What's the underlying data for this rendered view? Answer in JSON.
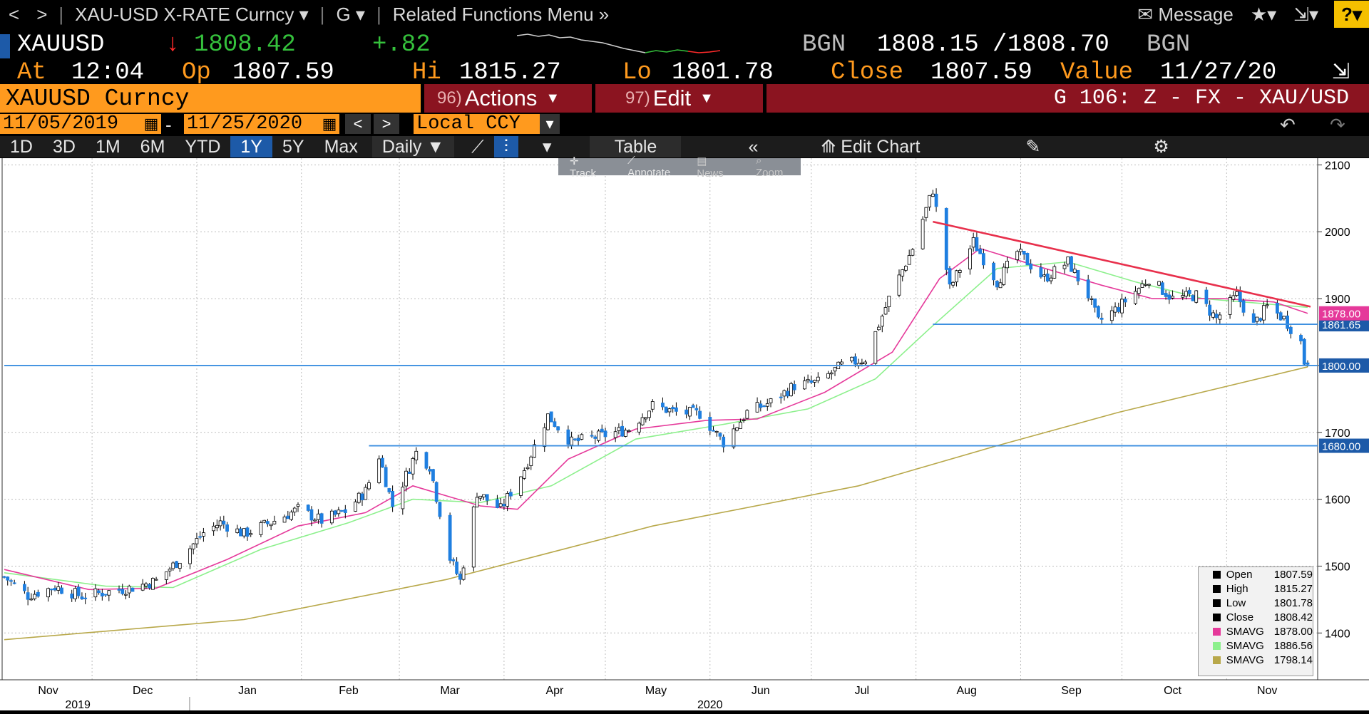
{
  "nav": {
    "back": "<",
    "forward": ">",
    "ticker_menu": "XAU-USD X-RATE Curncy",
    "g_menu": "G",
    "related": "Related Functions Menu",
    "message": "Message",
    "help": "?"
  },
  "quote": {
    "symbol": "XAUUSD",
    "last": "1808.42",
    "change": "+.82",
    "bgn1": "BGN",
    "bid": "1808.15",
    "ask": "1808.70",
    "bgn2": "BGN",
    "at_label": "At",
    "time": "12:04",
    "op_label": "Op",
    "open": "1807.59",
    "hi_label": "Hi",
    "high": "1815.27",
    "lo_label": "Lo",
    "low": "1801.78",
    "close_label": "Close",
    "close": "1807.59",
    "value_label": "Value",
    "value_date": "11/27/20"
  },
  "secbar": {
    "security": "XAUUSD Curncy",
    "actions_num": "96)",
    "actions": "Actions",
    "edit_num": "97)",
    "edit": "Edit",
    "gnum": "G 106: Z - FX - XAU/USD"
  },
  "datebar": {
    "start": "11/05/2019",
    "dash": "-",
    "end": "11/25/2020",
    "ccy": "Local CCY"
  },
  "periods": [
    "1D",
    "3D",
    "1M",
    "6M",
    "YTD",
    "1Y",
    "5Y",
    "Max"
  ],
  "selected_period": "1Y",
  "freq": "Daily",
  "table_label": "Table",
  "edit_chart": "Edit Chart",
  "tools": [
    "Track",
    "Annotate",
    "News",
    "Zoom"
  ],
  "colors": {
    "up": "#ffffff",
    "down": "#1f7fe0",
    "sma_pink": "#e5399a",
    "sma_green": "#8cf08c",
    "sma_olive": "#b8a84a",
    "trend": "#e8304c",
    "hline": "#3c8fe0"
  },
  "chart_data": {
    "type": "candlestick",
    "title": "",
    "xlabel": "",
    "ylabel": "",
    "ylim": [
      1330,
      2110
    ],
    "yticks": [
      1400,
      1500,
      1600,
      1700,
      1800,
      1900,
      2000,
      2100
    ],
    "month_labels": [
      "Nov",
      "Dec",
      "Jan",
      "Feb",
      "Mar",
      "Apr",
      "May",
      "Jun",
      "Jul",
      "Aug",
      "Sep",
      "Oct",
      "Nov"
    ],
    "year_labels": [
      "2019",
      "2020"
    ],
    "x_range": [
      "2019-11-05",
      "2020-11-25"
    ],
    "price_path": [
      [
        "2019-11-05",
        1484
      ],
      [
        "2019-11-12",
        1456
      ],
      [
        "2019-11-20",
        1469
      ],
      [
        "2019-11-28",
        1455
      ],
      [
        "2019-12-06",
        1462
      ],
      [
        "2019-12-13",
        1468
      ],
      [
        "2019-12-20",
        1478
      ],
      [
        "2019-12-27",
        1510
      ],
      [
        "2020-01-03",
        1550
      ],
      [
        "2020-01-08",
        1565
      ],
      [
        "2020-01-15",
        1548
      ],
      [
        "2020-01-24",
        1568
      ],
      [
        "2020-01-31",
        1585
      ],
      [
        "2020-02-07",
        1568
      ],
      [
        "2020-02-14",
        1582
      ],
      [
        "2020-02-20",
        1612
      ],
      [
        "2020-02-24",
        1665
      ],
      [
        "2020-02-28",
        1590
      ],
      [
        "2020-03-06",
        1670
      ],
      [
        "2020-03-10",
        1650
      ],
      [
        "2020-03-16",
        1512
      ],
      [
        "2020-03-19",
        1478
      ],
      [
        "2020-03-24",
        1610
      ],
      [
        "2020-03-31",
        1585
      ],
      [
        "2020-04-07",
        1645
      ],
      [
        "2020-04-14",
        1725
      ],
      [
        "2020-04-21",
        1685
      ],
      [
        "2020-04-30",
        1695
      ],
      [
        "2020-05-08",
        1705
      ],
      [
        "2020-05-15",
        1740
      ],
      [
        "2020-05-22",
        1730
      ],
      [
        "2020-05-29",
        1728
      ],
      [
        "2020-06-05",
        1685
      ],
      [
        "2020-06-12",
        1730
      ],
      [
        "2020-06-19",
        1745
      ],
      [
        "2020-06-26",
        1770
      ],
      [
        "2020-07-03",
        1775
      ],
      [
        "2020-07-10",
        1800
      ],
      [
        "2020-07-17",
        1810
      ],
      [
        "2020-07-24",
        1900
      ],
      [
        "2020-07-31",
        1975
      ],
      [
        "2020-08-06",
        2063
      ],
      [
        "2020-08-11",
        1915
      ],
      [
        "2020-08-18",
        1985
      ],
      [
        "2020-08-25",
        1925
      ],
      [
        "2020-08-31",
        1970
      ],
      [
        "2020-09-08",
        1930
      ],
      [
        "2020-09-15",
        1955
      ],
      [
        "2020-09-21",
        1905
      ],
      [
        "2020-09-24",
        1865
      ],
      [
        "2020-09-30",
        1887
      ],
      [
        "2020-10-09",
        1930
      ],
      [
        "2020-10-16",
        1900
      ],
      [
        "2020-10-23",
        1905
      ],
      [
        "2020-10-29",
        1870
      ],
      [
        "2020-11-04",
        1905
      ],
      [
        "2020-11-09",
        1860
      ],
      [
        "2020-11-13",
        1888
      ],
      [
        "2020-11-18",
        1870
      ],
      [
        "2020-11-23",
        1835
      ],
      [
        "2020-11-24",
        1805
      ],
      [
        "2020-11-25",
        1808
      ]
    ],
    "sma_pink": [
      [
        "2019-11-05",
        1495
      ],
      [
        "2019-11-30",
        1465
      ],
      [
        "2019-12-20",
        1467
      ],
      [
        "2020-01-10",
        1510
      ],
      [
        "2020-01-31",
        1560
      ],
      [
        "2020-02-20",
        1580
      ],
      [
        "2020-03-05",
        1620
      ],
      [
        "2020-03-25",
        1590
      ],
      [
        "2020-04-05",
        1585
      ],
      [
        "2020-04-20",
        1660
      ],
      [
        "2020-05-10",
        1705
      ],
      [
        "2020-05-31",
        1718
      ],
      [
        "2020-06-15",
        1720
      ],
      [
        "2020-07-05",
        1760
      ],
      [
        "2020-07-25",
        1820
      ],
      [
        "2020-08-08",
        1930
      ],
      [
        "2020-08-20",
        1975
      ],
      [
        "2020-09-05",
        1950
      ],
      [
        "2020-09-25",
        1920
      ],
      [
        "2020-10-10",
        1900
      ],
      [
        "2020-10-31",
        1900
      ],
      [
        "2020-11-15",
        1895
      ],
      [
        "2020-11-25",
        1878
      ]
    ],
    "sma_green": [
      [
        "2019-11-05",
        1490
      ],
      [
        "2019-12-05",
        1470
      ],
      [
        "2019-12-25",
        1468
      ],
      [
        "2020-01-20",
        1525
      ],
      [
        "2020-02-15",
        1565
      ],
      [
        "2020-03-05",
        1600
      ],
      [
        "2020-03-25",
        1595
      ],
      [
        "2020-04-15",
        1620
      ],
      [
        "2020-05-10",
        1690
      ],
      [
        "2020-06-05",
        1712
      ],
      [
        "2020-06-30",
        1735
      ],
      [
        "2020-07-20",
        1780
      ],
      [
        "2020-08-05",
        1855
      ],
      [
        "2020-08-25",
        1945
      ],
      [
        "2020-09-15",
        1955
      ],
      [
        "2020-10-05",
        1925
      ],
      [
        "2020-10-25",
        1900
      ],
      [
        "2020-11-25",
        1887
      ]
    ],
    "sma_olive": [
      [
        "2019-11-05",
        1390
      ],
      [
        "2020-01-15",
        1420
      ],
      [
        "2020-03-15",
        1480
      ],
      [
        "2020-05-15",
        1560
      ],
      [
        "2020-07-15",
        1620
      ],
      [
        "2020-08-25",
        1680
      ],
      [
        "2020-09-30",
        1730
      ],
      [
        "2020-11-25",
        1798
      ]
    ],
    "trendline": [
      [
        "2020-08-06",
        2015
      ],
      [
        "2020-11-25",
        1888
      ]
    ],
    "hlines": [
      {
        "value": 1861.65,
        "label": "1861.65",
        "start": "2020-08-06"
      },
      {
        "value": 1800.0,
        "label": "1800.00",
        "start": "2019-11-05"
      },
      {
        "value": 1680.0,
        "label": "1680.00",
        "start": "2020-02-21"
      }
    ],
    "price_tags": [
      {
        "value": 1878.0,
        "label": "1878.00",
        "color": "#e5399a"
      }
    ],
    "legend": [
      {
        "name": "Open",
        "value": "1807.59",
        "color": "#000000"
      },
      {
        "name": "High",
        "value": "1815.27",
        "color": "#000000"
      },
      {
        "name": "Low",
        "value": "1801.78",
        "color": "#000000"
      },
      {
        "name": "Close",
        "value": "1808.42",
        "color": "#000000"
      },
      {
        "name": "SMAVG",
        "value": "1878.00",
        "color": "#e5399a"
      },
      {
        "name": "SMAVG",
        "value": "1886.56",
        "color": "#8cf08c"
      },
      {
        "name": "SMAVG",
        "value": "1798.14",
        "color": "#b8a84a"
      }
    ]
  }
}
